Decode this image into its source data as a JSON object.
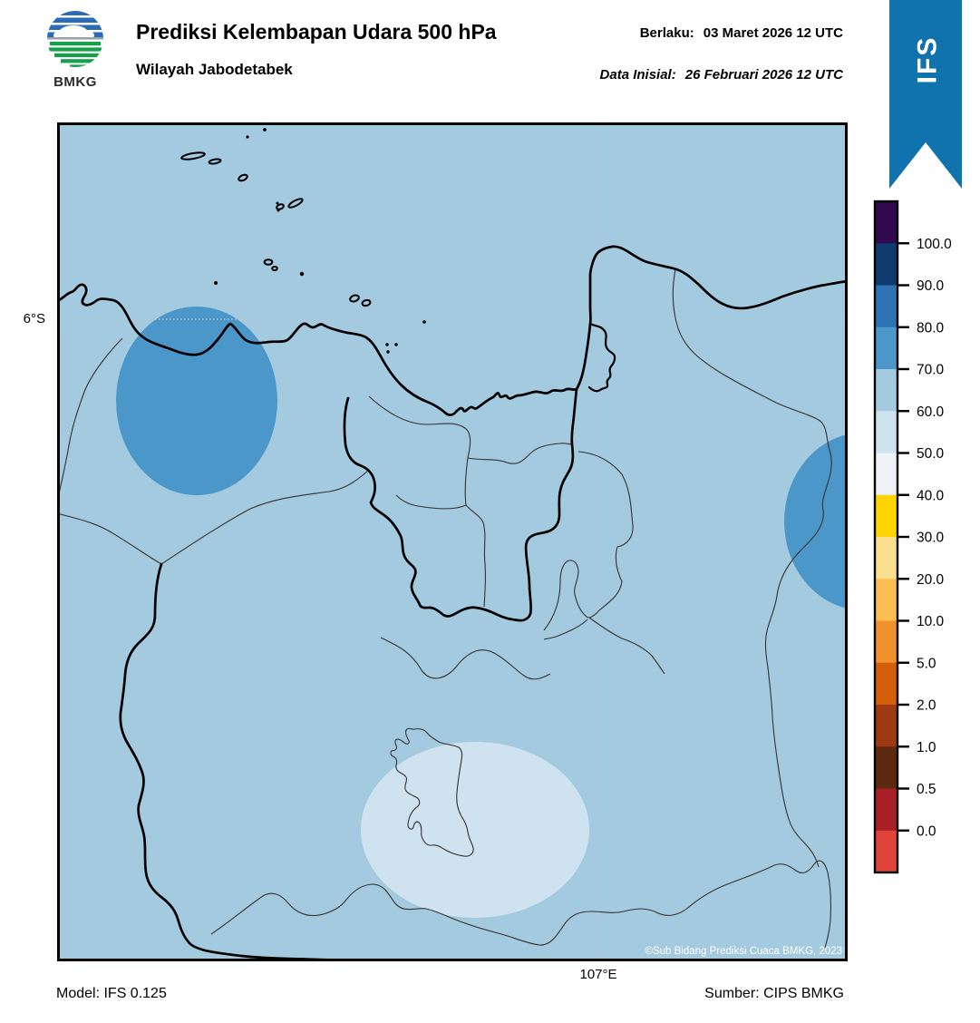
{
  "header": {
    "logo_text": "BMKG",
    "title": "Prediksi Kelembapan Udara 500 hPa",
    "subtitle": "Wilayah Jabodetabek",
    "valid_label": "Berlaku:",
    "valid_value": "03 Maret 2026 12 UTC",
    "init_label": "Data Inisial:",
    "init_value": "26 Februari 2026 12 UTC",
    "model_badge": "IFS",
    "badge_color": "#1173ae"
  },
  "map": {
    "lat_label": "6°S",
    "lon_label": "107°E",
    "copyright": "©Sub Bidang Prediksi Cuaca BMKG, 2023",
    "fill_colors": {
      "background_60_70": "#a4cae0",
      "region_70_80": "#4c97c9",
      "region_50_60": "#cfe2ef"
    },
    "humidity_regions": [
      {
        "range": "70.0–80.0",
        "color": "#4c97c9",
        "location": "northwest"
      },
      {
        "range": "70.0–80.0",
        "color": "#4c97c9",
        "location": "east edge"
      },
      {
        "range": "60.0–70.0",
        "color": "#a4cae0",
        "location": "background"
      },
      {
        "range": "50.0–60.0",
        "color": "#cfe2ef",
        "location": "south central"
      }
    ]
  },
  "colorbar": {
    "tick_labels": [
      "100.0",
      "90.0",
      "80.0",
      "70.0",
      "60.0",
      "50.0",
      "40.0",
      "30.0",
      "20.0",
      "10.0",
      "5.0",
      "2.0",
      "1.0",
      "0.5",
      "0.0"
    ],
    "segment_colors_top_to_bottom": [
      "#30094e",
      "#0f3a6d",
      "#2e74b4",
      "#4c97c9",
      "#a4cae0",
      "#cfe2ef",
      "#eef2f6",
      "#fed500",
      "#fbdf90",
      "#fcbe52",
      "#f1912c",
      "#d55e0b",
      "#9e3a11",
      "#5d2a10",
      "#a82025",
      "#e04338"
    ]
  },
  "footer": {
    "model": "Model: IFS 0.125",
    "source": "Sumber: CIPS BMKG"
  }
}
